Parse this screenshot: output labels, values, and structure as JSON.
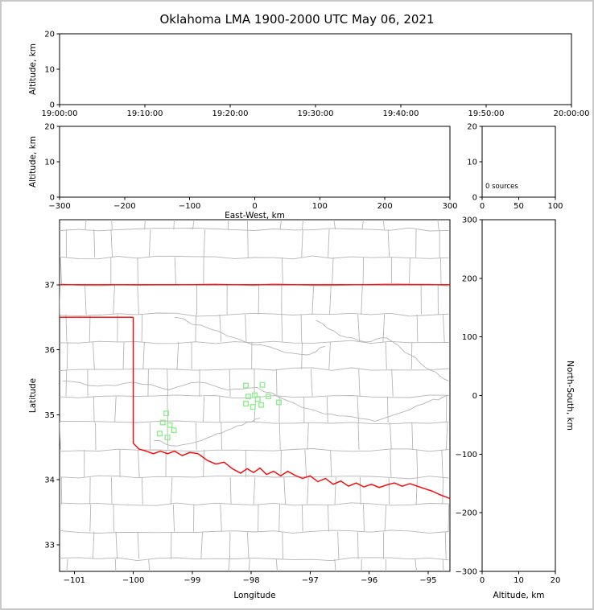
{
  "title": "Oklahoma LMA 1900-2000 UTC May 06, 2021",
  "colors": {
    "state_border": "#ff0000",
    "county_lines": "#b5b5b5",
    "stations": "#90ee90",
    "axes": "#000000",
    "background": "#ffffff"
  },
  "chart_data": [
    {
      "id": "time_height",
      "type": "scatter",
      "xlabel": "",
      "ylabel": "Altitude, km",
      "xtick_labels": [
        "19:00:00",
        "19:10:00",
        "19:20:00",
        "19:30:00",
        "19:40:00",
        "19:50:00",
        "20:00:00"
      ],
      "ylim": [
        0,
        20
      ],
      "yticks": [
        0,
        10,
        20
      ],
      "points": []
    },
    {
      "id": "ew_height",
      "type": "scatter",
      "xlabel": "East-West, km",
      "ylabel": "Altitude, km",
      "xlim": [
        -300,
        300
      ],
      "xticks": [
        -300,
        -200,
        -100,
        0,
        100,
        200,
        300
      ],
      "ylim": [
        0,
        20
      ],
      "yticks": [
        0,
        10,
        20
      ],
      "points": []
    },
    {
      "id": "source_histogram",
      "type": "line",
      "annotation": "0 sources",
      "xlim": [
        0,
        100
      ],
      "xticks": [
        0,
        50,
        100
      ],
      "ylim": [
        0,
        20
      ],
      "yticks": [
        0,
        10,
        20
      ],
      "points": []
    },
    {
      "id": "plan_view",
      "type": "scatter",
      "xlabel": "Longitude",
      "ylabel": "Latitude",
      "xlim": [
        -101.25,
        -94.63
      ],
      "xticks": [
        -101,
        -100,
        -99,
        -98,
        -97,
        -96,
        -95
      ],
      "ylim": [
        32.59,
        38.0
      ],
      "yticks": [
        33,
        34,
        35,
        36,
        37
      ],
      "stations": [
        [
          -98.09,
          35.45
        ],
        [
          -97.81,
          35.46
        ],
        [
          -98.05,
          35.28
        ],
        [
          -97.94,
          35.3
        ],
        [
          -98.09,
          35.17
        ],
        [
          -97.97,
          35.12
        ],
        [
          -97.83,
          35.15
        ],
        [
          -97.71,
          35.28
        ],
        [
          -97.53,
          35.19
        ],
        [
          -97.89,
          35.24
        ],
        [
          -99.44,
          35.02
        ],
        [
          -99.5,
          34.88
        ],
        [
          -99.38,
          34.84
        ],
        [
          -99.55,
          34.71
        ],
        [
          -99.42,
          34.65
        ],
        [
          -99.31,
          34.76
        ]
      ],
      "points": []
    },
    {
      "id": "ns_height",
      "type": "scatter",
      "xlabel": "Altitude, km",
      "ylabel": "North-South, km",
      "ylabel_side": "right",
      "xlim": [
        0,
        20
      ],
      "xticks": [
        0,
        10,
        20
      ],
      "ylim": [
        -300,
        300
      ],
      "yticks": [
        -300,
        -200,
        -100,
        0,
        100,
        200,
        300
      ],
      "points": []
    }
  ],
  "map": {
    "state_border": [
      [
        [
          -101.25,
          37.0
        ],
        [
          -94.62,
          37.0
        ]
      ],
      [
        [
          -94.62,
          37.0
        ],
        [
          -94.62,
          33.71
        ]
      ],
      [
        [
          -101.25,
          36.5
        ],
        [
          -100.0,
          36.5
        ]
      ],
      [
        [
          -100.0,
          36.5
        ],
        [
          -100.0,
          34.56
        ]
      ]
    ],
    "red_river": [
      [
        -100.0,
        34.56
      ],
      [
        -99.9,
        34.47
      ],
      [
        -99.78,
        34.44
      ],
      [
        -99.66,
        34.4
      ],
      [
        -99.54,
        34.44
      ],
      [
        -99.42,
        34.4
      ],
      [
        -99.3,
        34.44
      ],
      [
        -99.17,
        34.37
      ],
      [
        -99.04,
        34.42
      ],
      [
        -98.9,
        34.4
      ],
      [
        -98.75,
        34.3
      ],
      [
        -98.6,
        34.24
      ],
      [
        -98.46,
        34.27
      ],
      [
        -98.32,
        34.17
      ],
      [
        -98.18,
        34.1
      ],
      [
        -98.07,
        34.17
      ],
      [
        -97.96,
        34.11
      ],
      [
        -97.85,
        34.18
      ],
      [
        -97.74,
        34.08
      ],
      [
        -97.62,
        34.13
      ],
      [
        -97.5,
        34.06
      ],
      [
        -97.38,
        34.13
      ],
      [
        -97.26,
        34.07
      ],
      [
        -97.13,
        34.02
      ],
      [
        -97.0,
        34.06
      ],
      [
        -96.87,
        33.97
      ],
      [
        -96.74,
        34.02
      ],
      [
        -96.61,
        33.93
      ],
      [
        -96.48,
        33.98
      ],
      [
        -96.35,
        33.9
      ],
      [
        -96.22,
        33.95
      ],
      [
        -96.09,
        33.89
      ],
      [
        -95.96,
        33.93
      ],
      [
        -95.83,
        33.88
      ],
      [
        -95.7,
        33.92
      ],
      [
        -95.57,
        33.95
      ],
      [
        -95.44,
        33.9
      ],
      [
        -95.31,
        33.94
      ],
      [
        -95.18,
        33.9
      ],
      [
        -95.05,
        33.86
      ],
      [
        -94.92,
        33.82
      ],
      [
        -94.8,
        33.77
      ],
      [
        -94.63,
        33.71
      ]
    ],
    "rivers": [
      [
        [
          -101.2,
          35.52
        ],
        [
          -100.6,
          35.44
        ],
        [
          -100.0,
          35.5
        ],
        [
          -99.4,
          35.38
        ],
        [
          -98.9,
          35.5
        ],
        [
          -98.4,
          35.38
        ],
        [
          -97.9,
          35.42
        ],
        [
          -97.4,
          35.22
        ],
        [
          -96.9,
          35.06
        ],
        [
          -96.4,
          34.98
        ],
        [
          -95.9,
          34.9
        ],
        [
          -95.4,
          35.05
        ],
        [
          -95.0,
          35.2
        ],
        [
          -94.65,
          35.3
        ]
      ],
      [
        [
          -96.9,
          36.45
        ],
        [
          -96.5,
          36.22
        ],
        [
          -96.05,
          36.12
        ],
        [
          -95.7,
          36.18
        ],
        [
          -95.3,
          35.92
        ],
        [
          -94.95,
          35.68
        ],
        [
          -94.65,
          35.52
        ]
      ],
      [
        [
          -99.3,
          36.5
        ],
        [
          -98.7,
          36.32
        ],
        [
          -98.1,
          36.12
        ],
        [
          -97.55,
          36.0
        ],
        [
          -97.05,
          35.92
        ],
        [
          -96.75,
          36.05
        ]
      ],
      [
        [
          -99.65,
          34.6
        ],
        [
          -99.25,
          34.52
        ],
        [
          -98.85,
          34.6
        ],
        [
          -98.5,
          34.72
        ],
        [
          -98.15,
          34.84
        ],
        [
          -97.85,
          34.95
        ]
      ]
    ],
    "counties": {
      "row_lats": [
        32.78,
        33.2,
        33.62,
        34.04,
        34.46,
        34.88,
        35.28,
        35.7,
        36.12,
        36.54,
        37.0,
        37.42,
        37.85
      ],
      "col_start": -101.2,
      "col_end": -94.5,
      "col_spacing": 0.46
    }
  }
}
